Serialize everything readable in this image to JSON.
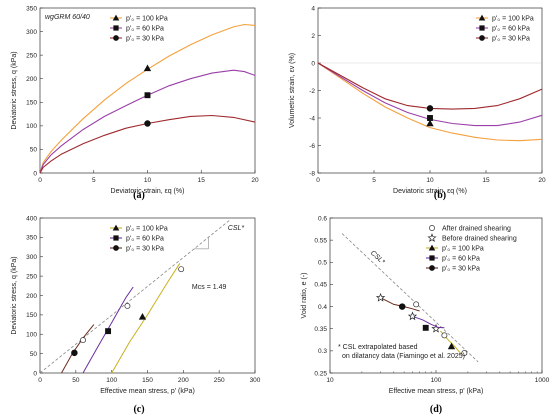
{
  "colors": {
    "p100": "#f5a03c",
    "p60": "#9a3fa8",
    "p30": "#9e2a2f",
    "c100": "#c9b11e",
    "c60": "#6b2ea0",
    "c30": "#6a2b1e",
    "csl": "#666666",
    "ann": "#d62728"
  },
  "legend": {
    "p100": "p'₀ = 100 kPa",
    "p60": "p'₀ = 60 kPa",
    "p30": "p'₀ = 30 kPa"
  },
  "chart_data": [
    {
      "panel": "(a)",
      "type": "line",
      "annotation": "wgGRM 60/40",
      "xlabel": "Deviatoric strain, εq (%)",
      "ylabel": "Deviatoric stress, q (kPa)",
      "xlim": [
        0,
        20
      ],
      "ylim": [
        0,
        350
      ],
      "xticks": [
        0,
        5,
        10,
        15,
        20
      ],
      "yticks": [
        0,
        50,
        100,
        150,
        200,
        250,
        300,
        350
      ],
      "series": [
        {
          "name": "p'₀ = 100 kPa",
          "color": "p100",
          "marker": "triangle",
          "points": [
            [
              0,
              0
            ],
            [
              0.3,
              22
            ],
            [
              1,
              45
            ],
            [
              2,
              70
            ],
            [
              4,
              115
            ],
            [
              6,
              155
            ],
            [
              8,
              190
            ],
            [
              10,
              220
            ],
            [
              12,
              248
            ],
            [
              14,
              272
            ],
            [
              16,
              293
            ],
            [
              18,
              310
            ],
            [
              19,
              315
            ],
            [
              20,
              313
            ]
          ],
          "marker_at": [
            10,
            222
          ]
        },
        {
          "name": "p'₀ = 60 kPa",
          "color": "p60",
          "marker": "square",
          "points": [
            [
              0,
              0
            ],
            [
              0.3,
              18
            ],
            [
              1,
              38
            ],
            [
              2,
              58
            ],
            [
              4,
              92
            ],
            [
              6,
              120
            ],
            [
              8,
              143
            ],
            [
              10,
              165
            ],
            [
              12,
              185
            ],
            [
              14,
              200
            ],
            [
              16,
              212
            ],
            [
              18,
              218
            ],
            [
              19,
              215
            ],
            [
              20,
              207
            ]
          ],
          "marker_at": [
            10,
            165
          ]
        },
        {
          "name": "p'₀ = 30 kPa",
          "color": "p30",
          "marker": "circle",
          "points": [
            [
              0,
              0
            ],
            [
              0.3,
              12
            ],
            [
              1,
              25
            ],
            [
              2,
              40
            ],
            [
              4,
              62
            ],
            [
              6,
              80
            ],
            [
              8,
              95
            ],
            [
              10,
              105
            ],
            [
              12,
              113
            ],
            [
              14,
              120
            ],
            [
              16,
              122
            ],
            [
              18,
              118
            ],
            [
              20,
              108
            ]
          ],
          "marker_at": [
            10,
            105
          ]
        }
      ]
    },
    {
      "panel": "(b)",
      "type": "line",
      "xlabel": "Deviatoric strain, εq (%)",
      "ylabel": "Volumetric strain, εv (%)",
      "xlim": [
        0,
        20
      ],
      "ylim": [
        -8,
        4
      ],
      "xticks": [
        0,
        5,
        10,
        15,
        20
      ],
      "yticks": [
        -8,
        -6,
        -4,
        -2,
        0,
        2,
        4
      ],
      "series": [
        {
          "name": "p'₀ = 100 kPa",
          "color": "p100",
          "marker": "triangle",
          "points": [
            [
              0,
              0
            ],
            [
              2,
              -1.1
            ],
            [
              4,
              -2.2
            ],
            [
              6,
              -3.2
            ],
            [
              8,
              -4.0
            ],
            [
              10,
              -4.7
            ],
            [
              12,
              -5.1
            ],
            [
              14,
              -5.4
            ],
            [
              16,
              -5.6
            ],
            [
              18,
              -5.65
            ],
            [
              20,
              -5.55
            ]
          ],
          "marker_at": [
            10,
            -4.4
          ]
        },
        {
          "name": "p'₀ = 60 kPa",
          "color": "p60",
          "marker": "square",
          "points": [
            [
              0,
              0
            ],
            [
              2,
              -1.0
            ],
            [
              4,
              -2.0
            ],
            [
              6,
              -2.9
            ],
            [
              8,
              -3.6
            ],
            [
              10,
              -4.1
            ],
            [
              12,
              -4.4
            ],
            [
              14,
              -4.55
            ],
            [
              16,
              -4.55
            ],
            [
              18,
              -4.3
            ],
            [
              20,
              -3.8
            ]
          ],
          "marker_at": [
            10,
            -4.0
          ]
        },
        {
          "name": "p'₀ = 30 kPa",
          "color": "p30",
          "marker": "circle",
          "points": [
            [
              0,
              0
            ],
            [
              2,
              -0.9
            ],
            [
              4,
              -1.8
            ],
            [
              6,
              -2.6
            ],
            [
              8,
              -3.1
            ],
            [
              10,
              -3.3
            ],
            [
              12,
              -3.35
            ],
            [
              14,
              -3.3
            ],
            [
              16,
              -3.1
            ],
            [
              18,
              -2.6
            ],
            [
              20,
              -1.9
            ]
          ],
          "marker_at": [
            10,
            -3.3
          ]
        }
      ]
    },
    {
      "panel": "(c)",
      "type": "line",
      "xlabel": "Effective mean stress, p' (kPa)",
      "ylabel": "Deviatoric stress, q (kPa)",
      "xlim": [
        0,
        300
      ],
      "ylim": [
        0,
        400
      ],
      "xticks": [
        0,
        50,
        100,
        150,
        200,
        250,
        300
      ],
      "yticks": [
        0,
        50,
        100,
        150,
        200,
        250,
        300,
        350,
        400
      ],
      "csl_label": "CSL*",
      "csl_slope_label": "Mcs = 1.49",
      "csl_slope": 1.49,
      "series": [
        {
          "name": "p'₀ = 100 kPa",
          "color": "c100",
          "marker": "triangle",
          "points": [
            [
              100,
              0
            ],
            [
              125,
              80
            ],
            [
              150,
              150
            ],
            [
              175,
              225
            ],
            [
              195,
              283
            ]
          ],
          "marker_at": [
            143,
            145
          ],
          "open_circle": [
            197,
            268
          ]
        },
        {
          "name": "p'₀ = 60 kPa",
          "color": "c60",
          "marker": "square",
          "points": [
            [
              60,
              0
            ],
            [
              80,
              65
            ],
            [
              100,
              130
            ],
            [
              120,
              195
            ],
            [
              130,
              222
            ]
          ],
          "marker_at": [
            95,
            108
          ],
          "open_circle": [
            122,
            173
          ]
        },
        {
          "name": "p'₀ = 30 kPa",
          "color": "c30",
          "marker": "circle",
          "points": [
            [
              30,
              0
            ],
            [
              45,
              50
            ],
            [
              60,
              90
            ],
            [
              75,
              125
            ]
          ],
          "marker_at": [
            48,
            52
          ],
          "open_circle": [
            60,
            85
          ]
        }
      ]
    },
    {
      "panel": "(d)",
      "type": "scatter",
      "xlabel": "Effective mean stress, p' (kPa)",
      "ylabel": "Void ratio, e (-)",
      "xscale": "log",
      "xlim": [
        10,
        1000
      ],
      "ylim": [
        0.25,
        0.6
      ],
      "xticks": [
        10,
        100,
        1000
      ],
      "yticks": [
        0.25,
        0.3,
        0.35,
        0.4,
        0.45,
        0.5,
        0.55,
        0.6
      ],
      "csl_label": "CSL*",
      "legend_extra": {
        "after": "After drained shearing",
        "before": "Before drained shearing"
      },
      "footnote": "* CSL extrapolated based on dilatancy data (Fiamingo et al. 2025)",
      "csl_points": [
        [
          13,
          0.565
        ],
        [
          250,
          0.275
        ]
      ],
      "series": [
        {
          "name": "p'₀ = 100 kPa",
          "color": "c100",
          "marker": "triangle",
          "points": [
            [
              110,
              0.345
            ],
            [
              130,
              0.325
            ],
            [
              150,
              0.31
            ],
            [
              170,
              0.295
            ],
            [
              190,
              0.29
            ]
          ],
          "marker_at": [
            140,
            0.31
          ],
          "before": [
            100,
            0.35
          ],
          "after": [
            185,
            0.295
          ]
        },
        {
          "name": "p'₀ = 60 kPa",
          "color": "c60",
          "marker": "square",
          "points": [
            [
              60,
              0.378
            ],
            [
              75,
              0.37
            ],
            [
              90,
              0.36
            ],
            [
              105,
              0.353
            ],
            [
              120,
              0.352
            ]
          ],
          "marker_at": [
            80,
            0.352
          ],
          "before": [
            60,
            0.378
          ],
          "after": [
            120,
            0.335
          ]
        },
        {
          "name": "p'₀ = 30 kPa",
          "color": "c30",
          "marker": "circle",
          "points": [
            [
              30,
              0.42
            ],
            [
              40,
              0.405
            ],
            [
              50,
              0.4
            ],
            [
              60,
              0.395
            ],
            [
              70,
              0.39
            ]
          ],
          "marker_at": [
            48,
            0.4
          ],
          "before": [
            30,
            0.42
          ],
          "after": [
            65,
            0.405
          ]
        }
      ]
    }
  ]
}
